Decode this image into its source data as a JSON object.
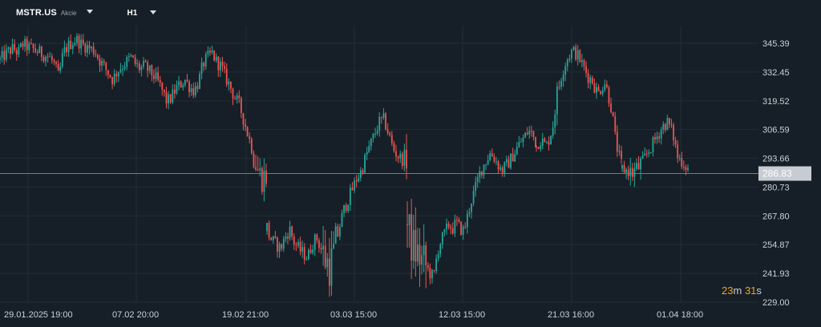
{
  "toolbar": {
    "symbol": "MSTR.US",
    "symbol_type": "Akcie",
    "timeframe": "H1",
    "dropdown_icon": "caret-down-icon"
  },
  "colors": {
    "background": "#161f27",
    "grid": "#222c35",
    "bull": "#26a69a",
    "bear": "#ef5350",
    "price_line": "#6b7f8c",
    "price_tag_bg": "#c6ccd2",
    "countdown": "#f0a51e"
  },
  "countdown": {
    "minutes": "23",
    "minutes_unit": "m",
    "seconds": "31",
    "seconds_unit": "s"
  },
  "chart_data": {
    "type": "candlestick",
    "timeframe": "H1",
    "ylim": [
      229.0,
      352.0
    ],
    "y_ticks": [
      "345.39",
      "332.45",
      "319.52",
      "306.59",
      "293.66",
      "280.73",
      "267.80",
      "254.87",
      "241.93",
      "229.00"
    ],
    "x_ticks": [
      "29.01.2025  19:00",
      "07.02  20:00",
      "19.02  21:00",
      "03.03  15:00",
      "12.03  15:00",
      "21.03  16:00",
      "01.04  18:00"
    ],
    "current_price": "286.83",
    "grid": true,
    "closes": [
      338,
      340,
      342,
      343,
      341,
      345,
      344,
      343,
      342,
      341,
      340,
      339,
      336,
      330,
      341,
      344,
      346,
      347,
      345,
      344,
      343,
      342,
      338,
      335,
      332,
      329,
      333,
      335,
      337,
      339,
      336,
      334,
      335,
      333,
      331,
      328,
      324,
      319,
      321,
      325,
      327,
      329,
      326,
      324,
      328,
      336,
      339,
      341,
      337,
      335,
      330,
      326,
      321,
      318,
      311,
      304,
      297,
      289,
      285,
      286,
      261,
      257,
      255,
      253,
      258,
      262,
      256,
      253,
      251,
      249,
      255,
      258,
      253,
      248,
      245,
      252,
      262,
      270,
      275,
      280,
      285,
      288,
      295,
      300,
      305,
      310,
      311,
      305,
      298,
      295,
      293,
      296,
      264,
      256,
      252,
      250,
      247,
      245,
      242,
      240,
      252,
      257,
      260,
      264,
      262,
      265,
      262,
      261,
      268,
      275,
      280,
      286,
      290,
      293,
      296,
      294,
      291,
      288,
      290,
      292,
      295,
      298,
      301,
      303,
      306,
      305,
      301,
      299,
      302,
      301,
      299,
      303,
      308,
      320,
      327,
      333,
      337,
      340,
      342,
      341,
      339,
      336,
      333,
      330,
      329,
      325,
      323,
      326,
      328,
      322,
      316,
      304,
      296,
      291,
      289,
      288,
      287,
      289,
      292,
      296,
      300,
      304,
      308,
      310,
      305,
      294,
      292,
      289
    ],
    "segments": [
      [
        0,
        59,
        0,
        332
      ],
      [
        60,
        91,
        333,
        507
      ],
      [
        92,
        126,
        508,
        668
      ],
      [
        127,
        153,
        669,
        775
      ],
      [
        154,
        167,
        776,
        858
      ]
    ],
    "volatility_boost": [
      [
        314,
        334,
        2.2
      ],
      [
        401,
        420,
        3.2
      ],
      [
        505,
        533,
        3.5
      ],
      [
        690,
        700,
        1.7
      ],
      [
        786,
        800,
        1.6
      ]
    ]
  }
}
